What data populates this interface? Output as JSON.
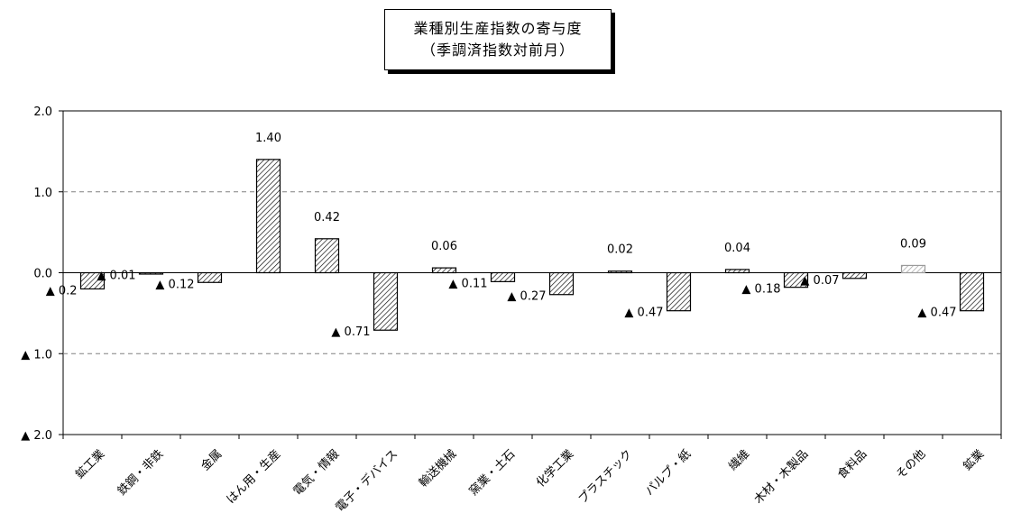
{
  "chart_data": {
    "type": "bar",
    "title": "業種別生産指数の寄与度",
    "subtitle": "（季調済指数対前月）",
    "categories": [
      "鉱工業",
      "鉄鋼・非鉄",
      "金属",
      "はん用・生産",
      "電気・情報",
      "電子・デバイス",
      "輸送機械",
      "窯業・土石",
      "化学工業",
      "プラスチック",
      "パルプ・紙",
      "繊維",
      "木材・木製品",
      "食料品",
      "その他",
      "鉱業"
    ],
    "values": [
      -0.2,
      -0.01,
      -0.12,
      1.4,
      0.42,
      -0.71,
      0.06,
      -0.11,
      -0.27,
      0.02,
      -0.47,
      0.04,
      -0.18,
      -0.07,
      0.09,
      -0.47
    ],
    "data_labels": [
      "▲ 0.2",
      "▲ 0.01",
      "▲ 0.12",
      "1.40",
      "0.42",
      "▲ 0.71",
      "0.06",
      "▲ 0.11",
      "▲ 0.27",
      "0.02",
      "▲ 0.47",
      "0.04",
      "▲ 0.18",
      "▲ 0.07",
      "0.09",
      "▲ 0.47"
    ],
    "highlight_index": 14,
    "ylim": [
      -2.0,
      2.0
    ],
    "yticks": [
      2.0,
      1.0,
      0.0,
      -1.0,
      -2.0
    ],
    "ytick_labels": [
      "2.0",
      "1.0",
      "0.0",
      "▲ 1.0",
      "▲ 2.0"
    ],
    "grid": "dashed at ±1.0, solid at 0",
    "colors": {
      "bar_hatch": "#000000",
      "bar_highlight": "#9a9a9a",
      "grid": "#808080"
    }
  }
}
